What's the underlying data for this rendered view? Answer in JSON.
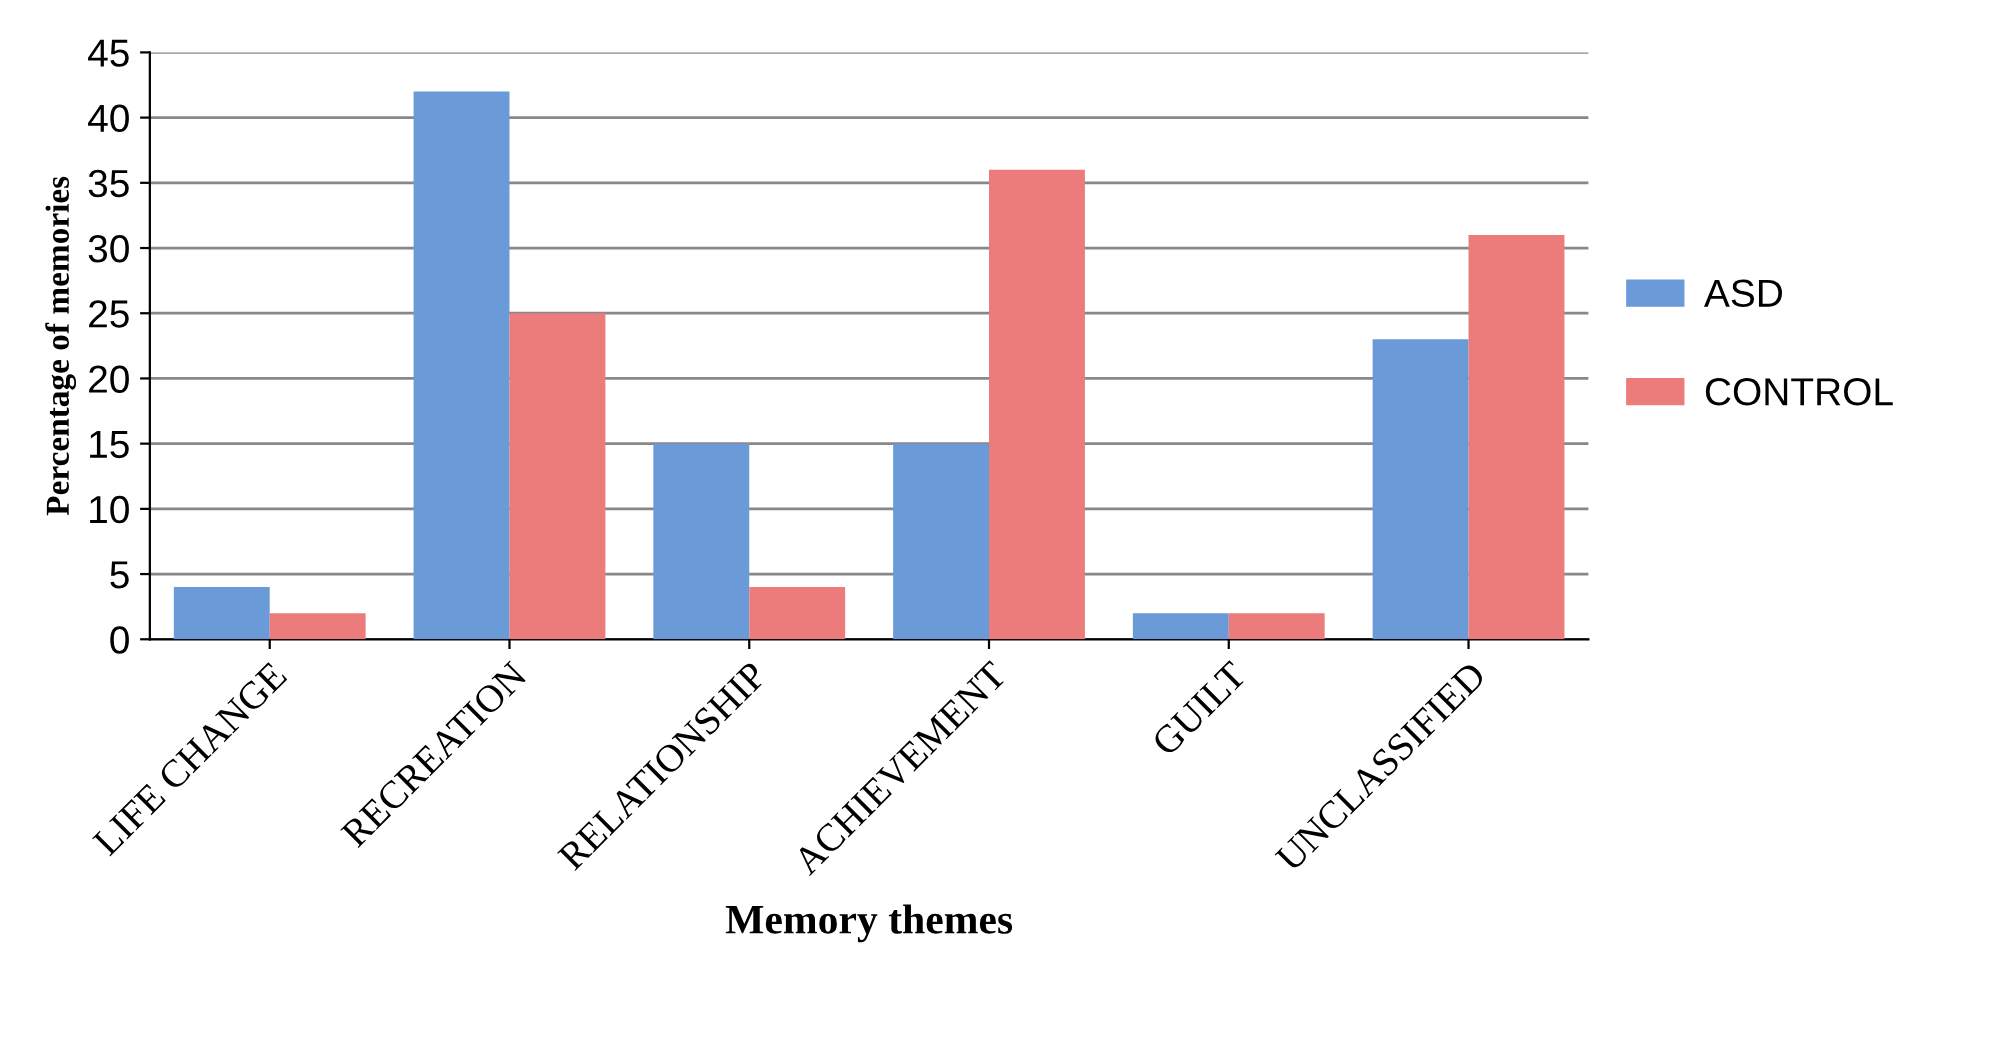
{
  "chart_data": {
    "type": "bar",
    "xlabel": "Memory themes",
    "ylabel": "Percentage of memories",
    "categories": [
      "LIFE CHANGE",
      "RECREATION",
      "RELATIONSHIP",
      "ACHIEVEMENT",
      "GUILT",
      "UNCLASSIFIED"
    ],
    "series": [
      {
        "name": "ASD",
        "color": "#6a9bd8",
        "values": [
          4,
          42,
          15,
          15,
          2,
          23
        ]
      },
      {
        "name": "CONTROL",
        "color": "#ec7b7b",
        "values": [
          2,
          25,
          4,
          36,
          2,
          31
        ]
      }
    ],
    "ylim": [
      0,
      45
    ],
    "yticks": [
      0,
      5,
      10,
      15,
      20,
      25,
      30,
      35,
      40,
      45
    ],
    "grid": "y",
    "legend": "right"
  }
}
